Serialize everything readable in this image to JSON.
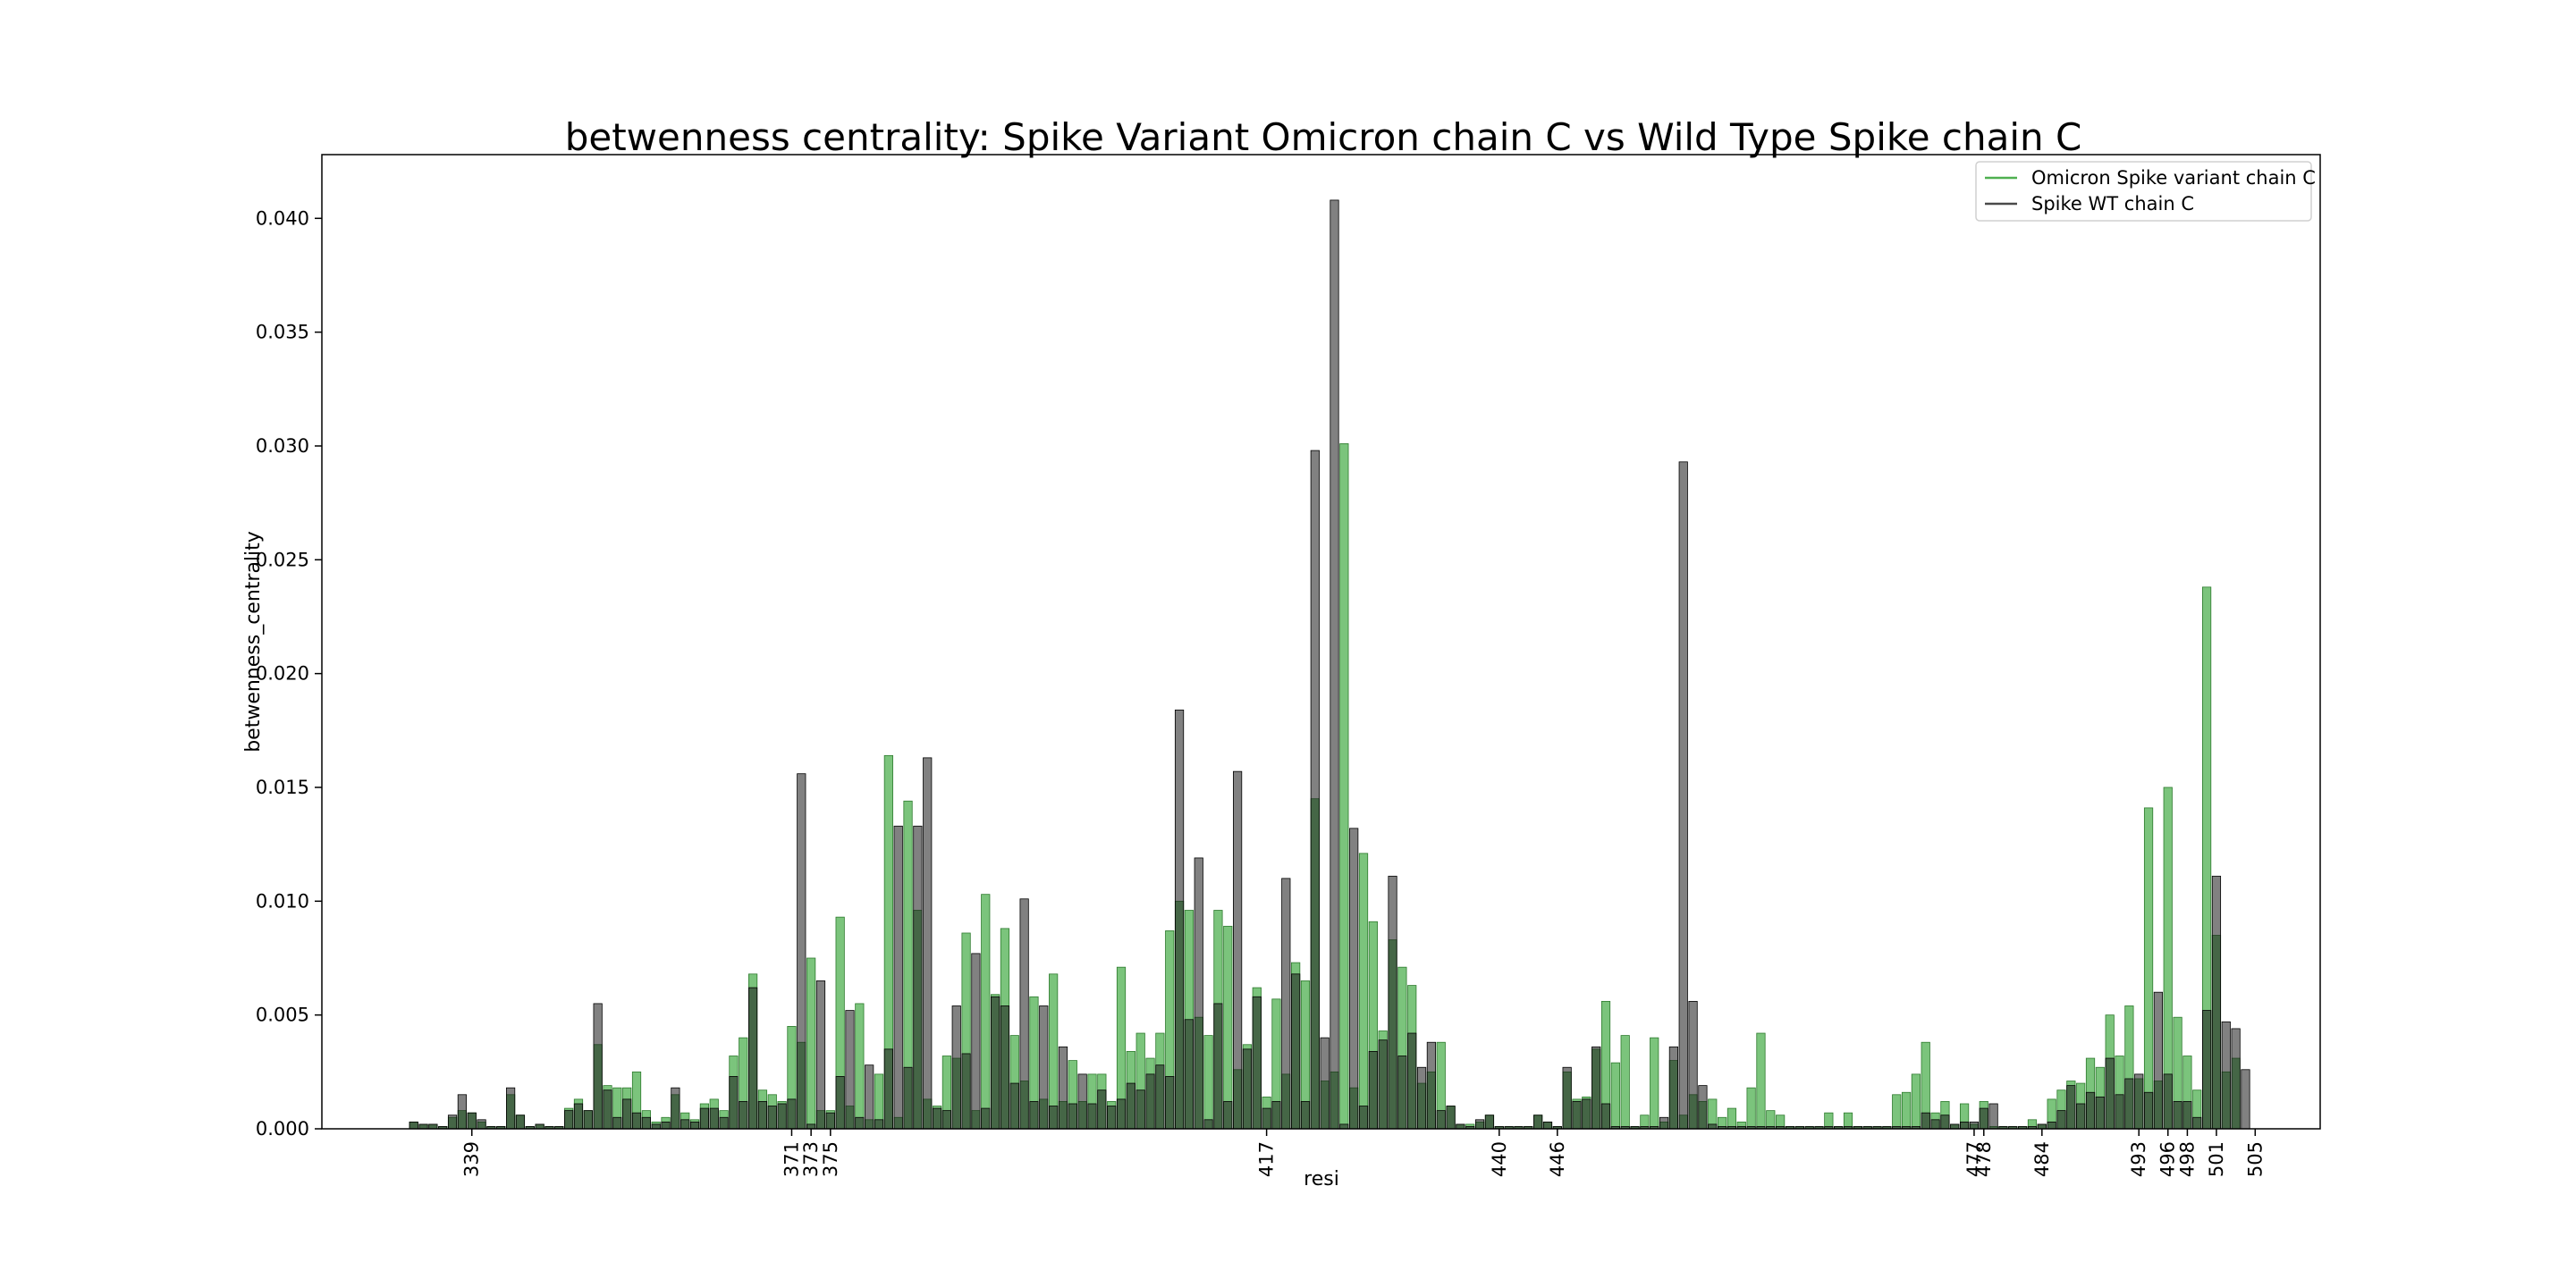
{
  "chart_data": {
    "type": "bar",
    "title": "betwenness centrality: Spike Variant Omicron chain C vs Wild Type Spike chain C",
    "xlabel": "resi",
    "ylabel": "betwenness_centrality",
    "ylim": [
      0,
      0.0428
    ],
    "yticks": [
      "0.000",
      "0.005",
      "0.010",
      "0.015",
      "0.020",
      "0.025",
      "0.030",
      "0.035",
      "0.040"
    ],
    "xtick_labels": [
      "339",
      "371",
      "373",
      "375",
      "417",
      "440",
      "446",
      "477",
      "478",
      "484",
      "493",
      "496",
      "498",
      "501",
      "505"
    ],
    "xtick_index": [
      6,
      39,
      41,
      43,
      88,
      112,
      118,
      161,
      162,
      168,
      178,
      181,
      183,
      186,
      190
    ],
    "legend": {
      "placement": "top-right",
      "entries": [
        "Omicron Spike variant chain C",
        "Spike WT chain C"
      ]
    },
    "colors": {
      "omicron": "#4fb050",
      "wt": "#4a4a4a",
      "overlap": "#2a4a2a"
    },
    "series": [
      {
        "name": "Omicron Spike variant chain C",
        "values": [
          0.0003,
          0.0002,
          0.0002,
          0.0001,
          0.0005,
          0.0008,
          0.0007,
          0.0003,
          0.0001,
          0.0001,
          0.0015,
          0.0006,
          0.0001,
          0.0002,
          0.0001,
          0.0001,
          0.0009,
          0.0013,
          0.0008,
          0.0037,
          0.0019,
          0.0018,
          0.0018,
          0.0025,
          0.0008,
          0.0003,
          0.0005,
          0.0015,
          0.0007,
          0.0004,
          0.0011,
          0.0013,
          0.0008,
          0.0032,
          0.004,
          0.0068,
          0.0017,
          0.0015,
          0.0012,
          0.0045,
          0.0038,
          0.0075,
          0.0008,
          0.0008,
          0.0093,
          0.001,
          0.0055,
          0.0004,
          0.0024,
          0.0164,
          0.0005,
          0.0144,
          0.0096,
          0.0013,
          0.001,
          0.0032,
          0.0031,
          0.0086,
          0.0008,
          0.0103,
          0.0059,
          0.0088,
          0.0041,
          0.0021,
          0.0058,
          0.0013,
          0.0068,
          0.0012,
          0.003,
          0.0012,
          0.0024,
          0.0024,
          0.0012,
          0.0071,
          0.0034,
          0.0042,
          0.0031,
          0.0042,
          0.0087,
          0.01,
          0.0096,
          0.0049,
          0.0041,
          0.0096,
          0.0089,
          0.0026,
          0.0037,
          0.0062,
          0.0014,
          0.0057,
          0.0024,
          0.0073,
          0.0065,
          0.0145,
          0.0021,
          0.0025,
          0.0301,
          0.0018,
          0.0121,
          0.0091,
          0.0043,
          0.0083,
          0.0071,
          0.0063,
          0.002,
          0.0025,
          0.0038,
          0.001,
          0.0002,
          0.0002,
          0.0003,
          0.0006,
          0.0001,
          0.0001,
          0.0001,
          0.0001,
          0.0006,
          0.0003,
          0.0001,
          0.0025,
          0.0013,
          0.0014,
          0.0035,
          0.0056,
          0.0029,
          0.0041,
          0.0001,
          0.0006,
          0.004,
          0.0003,
          0.003,
          0.0006,
          0.0015,
          0.0012,
          0.0013,
          0.0005,
          0.0009,
          0.0003,
          0.0018,
          0.0042,
          0.0008,
          0.0006,
          0.0001,
          0.0001,
          0.0001,
          0.0001,
          0.0007,
          0.0001,
          0.0007,
          0.0001,
          0.0001,
          0.0001,
          0.0001,
          0.0015,
          0.0016,
          0.0024,
          0.0038,
          0.0007,
          0.0012,
          0.0002,
          0.0011,
          0.0002,
          0.0012,
          0.0001,
          0.0001,
          0.0001,
          0.0001,
          0.0004,
          0.0002,
          0.0013,
          0.0017,
          0.0021,
          0.002,
          0.0031,
          0.0027,
          0.005,
          0.0032,
          0.0054,
          0.0022,
          0.0141,
          0.0021,
          0.015,
          0.0049,
          0.0032,
          0.0017,
          0.0238,
          0.0085,
          0.0025,
          0.0031
        ]
      },
      {
        "name": "Spike WT chain C",
        "values": [
          0.0003,
          0.0002,
          0.0002,
          0.0001,
          0.0006,
          0.0015,
          0.0007,
          0.0004,
          0.0001,
          0.0001,
          0.0018,
          0.0006,
          0.0001,
          0.0002,
          0.0001,
          0.0001,
          0.0008,
          0.0011,
          0.0008,
          0.0055,
          0.0017,
          0.0005,
          0.0013,
          0.0007,
          0.0005,
          0.0002,
          0.0003,
          0.0018,
          0.0004,
          0.0003,
          0.0009,
          0.0009,
          0.0005,
          0.0023,
          0.0012,
          0.0062,
          0.0012,
          0.001,
          0.0011,
          0.0013,
          0.0156,
          0.0002,
          0.0065,
          0.0007,
          0.0023,
          0.0052,
          0.0005,
          0.0028,
          0.0004,
          0.0035,
          0.0133,
          0.0027,
          0.0133,
          0.0163,
          0.0009,
          0.0008,
          0.0054,
          0.0033,
          0.0077,
          0.0009,
          0.0058,
          0.0054,
          0.002,
          0.0101,
          0.0012,
          0.0054,
          0.001,
          0.0036,
          0.0011,
          0.0024,
          0.0011,
          0.0017,
          0.001,
          0.0013,
          0.002,
          0.0017,
          0.0024,
          0.0028,
          0.0023,
          0.0184,
          0.0048,
          0.0119,
          0.0004,
          0.0055,
          0.0012,
          0.0157,
          0.0035,
          0.0058,
          0.0009,
          0.0012,
          0.011,
          0.0068,
          0.0012,
          0.0298,
          0.004,
          0.0408,
          0.0002,
          0.0132,
          0.001,
          0.0034,
          0.0039,
          0.0111,
          0.0032,
          0.0042,
          0.0027,
          0.0038,
          0.0008,
          0.001,
          0.0002,
          0.0001,
          0.0004,
          0.0006,
          0.0001,
          0.0001,
          0.0001,
          0.0001,
          0.0006,
          0.0003,
          0.0001,
          0.0027,
          0.0012,
          0.0013,
          0.0036,
          0.0011,
          0.0001,
          0.0001,
          0.0001,
          0.0001,
          0.0001,
          0.0005,
          0.0036,
          0.0293,
          0.0056,
          0.0019,
          0.0002,
          0.0001,
          0.0001,
          0.0001,
          0.0001,
          0.0001,
          0.0001,
          0.0001,
          0.0001,
          0.0001,
          0.0001,
          0.0001,
          0.0001,
          0.0001,
          0.0001,
          0.0001,
          0.0001,
          0.0001,
          0.0001,
          0.0001,
          0.0001,
          0.0001,
          0.0007,
          0.0004,
          0.0006,
          0.0002,
          0.0003,
          0.0003,
          0.0009,
          0.0011,
          0.0001,
          0.0001,
          0.0001,
          0.0001,
          0.0002,
          0.0003,
          0.0008,
          0.0019,
          0.0011,
          0.0016,
          0.0014,
          0.0031,
          0.0015,
          0.0022,
          0.0024,
          0.0016,
          0.006,
          0.0024,
          0.0012,
          0.0012,
          0.0005,
          0.0052,
          0.0111,
          0.0047,
          0.0044,
          0.0026
        ]
      }
    ]
  }
}
